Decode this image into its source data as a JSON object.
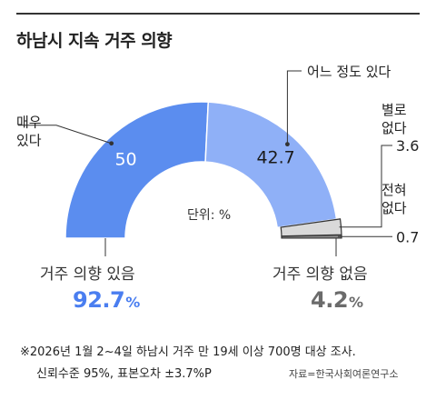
{
  "title": "하남시 지속 거주 의향",
  "unit_label": "단위: %",
  "chart_data": {
    "type": "pie",
    "variant": "semicircle-donut",
    "title": "하남시 지속 거주 의향",
    "unit": "%",
    "slices": [
      {
        "key": "very",
        "label": "매우 있다",
        "label_lines": [
          "매우",
          "있다"
        ],
        "value": 50,
        "value_text": "50",
        "color": "#5b8def"
      },
      {
        "key": "some",
        "label": "어느 정도 있다",
        "label_lines": [
          "어느 정도 있다"
        ],
        "value": 42.7,
        "value_text": "42.7",
        "color": "#8fb0f7"
      },
      {
        "key": "little",
        "label": "별로 없다",
        "label_lines": [
          "별로",
          "없다"
        ],
        "value": 3.6,
        "value_text": "3.6",
        "color": "#d9d9d9"
      },
      {
        "key": "none",
        "label": "전혀 없다",
        "label_lines": [
          "전혀",
          "없다"
        ],
        "value": 0.7,
        "value_text": "0.7",
        "color": "#8c8c8c"
      }
    ],
    "totals": [
      {
        "label": "거주 의향 있음",
        "value": "92.7",
        "suffix": "%",
        "color": "#4a7ef0"
      },
      {
        "label": "거주 의향 없음",
        "value": "4.2",
        "suffix": "%",
        "color": "#6b6b6b"
      }
    ]
  },
  "footnotes": [
    "※2026년 1월 2~4일 하남시 거주 만 19세 이상 700명 대상 조사.",
    "신뢰수준 95%, 표본오차 ±3.7%P"
  ],
  "source": "자료=한국사회여론연구소"
}
